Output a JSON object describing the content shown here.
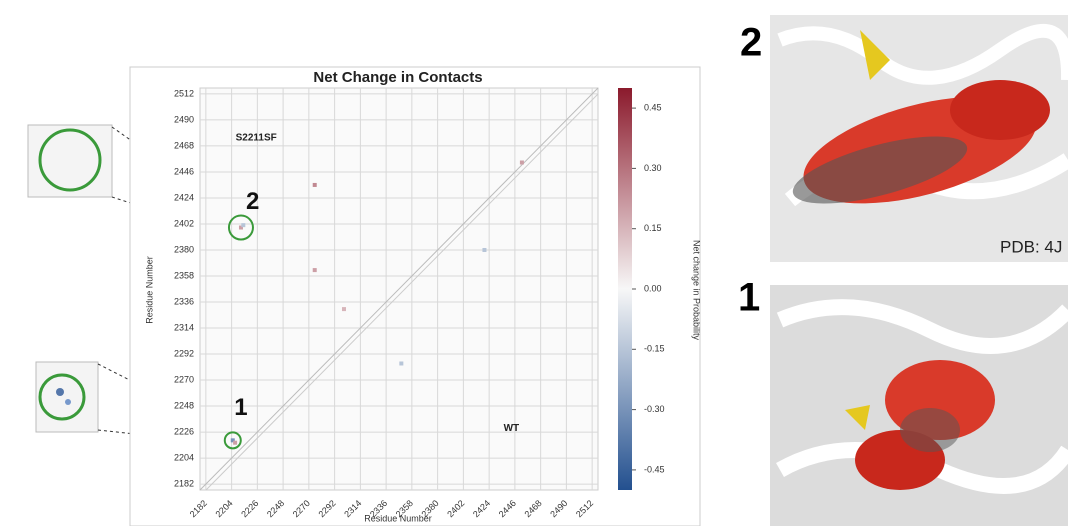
{
  "chart_data": {
    "type": "heatmap",
    "title": "Net Change in Contacts",
    "xlabel": "Residue Number",
    "ylabel": "Residue Number",
    "xlim": [
      2177,
      2517
    ],
    "ylim": [
      2177,
      2517
    ],
    "xticks": [
      2182,
      2204,
      2226,
      2248,
      2270,
      2292,
      2314,
      2336,
      2358,
      2380,
      2402,
      2424,
      2446,
      2468,
      2490,
      2512
    ],
    "yticks": [
      2182,
      2204,
      2226,
      2248,
      2270,
      2292,
      2314,
      2336,
      2358,
      2380,
      2402,
      2424,
      2446,
      2468,
      2490,
      2512
    ],
    "grid": true,
    "colormap": [
      "#23508f",
      "#f7f7f7",
      "#8b1a2c"
    ],
    "colorbar": {
      "label": "Net change in Probability",
      "lim": [
        -0.5,
        0.5
      ],
      "ticks": [
        0.45,
        {
          "value": 0.3,
          "label": "0.30"
        },
        0.15,
        {
          "value": 0,
          "label": "0.00"
        },
        -0.15,
        {
          "value": -0.3,
          "label": "-0.30"
        },
        -0.45
      ]
    },
    "points": {
      "x": [
        2212,
        2214,
        2205,
        2207,
        2275,
        2275,
        2349,
        2452,
        2300,
        2420
      ],
      "y": [
        2399,
        2401,
        2219,
        2217,
        2435,
        2363,
        2284,
        2454,
        2330,
        2380
      ],
      "values": [
        0.2,
        -0.15,
        -0.3,
        0.2,
        0.25,
        0.2,
        -0.15,
        0.2,
        0.15,
        -0.15
      ]
    },
    "annotations": [
      {
        "text": "S2211SF",
        "x": 2225,
        "y": 2475
      },
      {
        "text": "WT",
        "x": 2443,
        "y": 2229
      },
      {
        "text": "2",
        "x": 2222,
        "y": 2420
      },
      {
        "text": "1",
        "x": 2212,
        "y": 2246
      }
    ]
  },
  "figure": {
    "panel_labels": [
      "2",
      "1"
    ],
    "pdb": "PDB: 4J"
  }
}
